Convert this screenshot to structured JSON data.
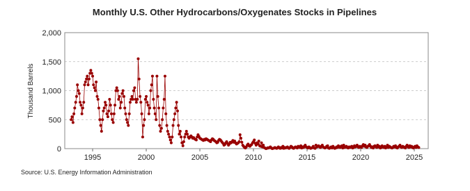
{
  "chart_data": {
    "type": "line",
    "title": "Monthly U.S. Other Hydrocarbons/Oxygenates Stocks in Pipelines",
    "y_label": "Thousand Barrels",
    "source": "Source: U.S. Energy Information Administration",
    "color": "#990000",
    "grid": true,
    "xlim": [
      1992.4,
      2026.3
    ],
    "xticks": [
      1995,
      2000,
      2005,
      2010,
      2015,
      2020,
      2025
    ],
    "ylim": [
      0,
      2000
    ],
    "yticks": [
      0,
      500,
      {
        "value": 1000,
        "label": "1,000"
      },
      {
        "value": 1500,
        "label": "1,500"
      },
      {
        "value": 2000,
        "label": "2,000"
      }
    ],
    "x": [
      1993,
      1993.08,
      1993.17,
      1993.25,
      1993.33,
      1993.42,
      1993.5,
      1993.58,
      1993.67,
      1993.75,
      1993.83,
      1993.92,
      1994,
      1994.08,
      1994.17,
      1994.25,
      1994.33,
      1994.42,
      1994.5,
      1994.58,
      1994.67,
      1994.75,
      1994.83,
      1994.92,
      1995,
      1995.08,
      1995.17,
      1995.25,
      1995.33,
      1995.42,
      1995.5,
      1995.58,
      1995.67,
      1995.75,
      1995.83,
      1995.92,
      1996,
      1996.08,
      1996.17,
      1996.25,
      1996.33,
      1996.42,
      1996.5,
      1996.58,
      1996.67,
      1996.75,
      1996.83,
      1996.92,
      1997,
      1997.08,
      1997.17,
      1997.25,
      1997.33,
      1997.42,
      1997.5,
      1997.58,
      1997.67,
      1997.75,
      1997.83,
      1997.92,
      1998,
      1998.08,
      1998.17,
      1998.25,
      1998.33,
      1998.42,
      1998.5,
      1998.58,
      1998.67,
      1998.75,
      1998.83,
      1998.92,
      1999,
      1999.08,
      1999.17,
      1999.25,
      1999.33,
      1999.42,
      1999.5,
      1999.58,
      1999.67,
      1999.75,
      1999.83,
      1999.92,
      2000,
      2000.08,
      2000.17,
      2000.25,
      2000.33,
      2000.42,
      2000.5,
      2000.58,
      2000.67,
      2000.75,
      2000.83,
      2000.92,
      2001,
      2001.08,
      2001.17,
      2001.25,
      2001.33,
      2001.42,
      2001.5,
      2001.58,
      2001.67,
      2001.75,
      2001.83,
      2001.92,
      2002,
      2002.08,
      2002.17,
      2002.25,
      2002.33,
      2002.42,
      2002.5,
      2002.58,
      2002.67,
      2002.75,
      2002.83,
      2002.92,
      2003,
      2003.08,
      2003.17,
      2003.25,
      2003.33,
      2003.42,
      2003.5,
      2003.58,
      2003.67,
      2003.75,
      2003.83,
      2003.92,
      2004,
      2004.08,
      2004.17,
      2004.25,
      2004.33,
      2004.42,
      2004.5,
      2004.58,
      2004.67,
      2004.75,
      2004.83,
      2004.92,
      2005,
      2005.08,
      2005.17,
      2005.25,
      2005.33,
      2005.42,
      2005.5,
      2005.58,
      2005.67,
      2005.75,
      2005.83,
      2005.92,
      2006,
      2006.08,
      2006.17,
      2006.25,
      2006.33,
      2006.42,
      2006.5,
      2006.58,
      2006.67,
      2006.75,
      2006.83,
      2006.92,
      2007,
      2007.08,
      2007.17,
      2007.25,
      2007.33,
      2007.42,
      2007.5,
      2007.58,
      2007.67,
      2007.75,
      2007.83,
      2007.92,
      2008,
      2008.08,
      2008.17,
      2008.25,
      2008.33,
      2008.42,
      2008.5,
      2008.58,
      2008.67,
      2008.75,
      2008.83,
      2008.92,
      2009,
      2009.08,
      2009.17,
      2009.25,
      2009.33,
      2009.42,
      2009.5,
      2009.58,
      2009.67,
      2009.75,
      2009.83,
      2009.92,
      2010,
      2010.08,
      2010.17,
      2010.25,
      2010.33,
      2010.42,
      2010.5,
      2010.58,
      2010.67,
      2010.75,
      2010.83,
      2010.92,
      2011,
      2011.08,
      2011.17,
      2011.25,
      2011.33,
      2011.42,
      2011.5,
      2011.58,
      2011.67,
      2011.75,
      2011.83,
      2011.92,
      2012,
      2012.08,
      2012.17,
      2012.25,
      2012.33,
      2012.42,
      2012.5,
      2012.58,
      2012.67,
      2012.75,
      2012.83,
      2012.92,
      2013,
      2013.08,
      2013.17,
      2013.25,
      2013.33,
      2013.42,
      2013.5,
      2013.58,
      2013.67,
      2013.75,
      2013.83,
      2013.92,
      2014,
      2014.08,
      2014.17,
      2014.25,
      2014.33,
      2014.42,
      2014.5,
      2014.58,
      2014.67,
      2014.75,
      2014.83,
      2014.92,
      2015,
      2015.08,
      2015.17,
      2015.25,
      2015.33,
      2015.42,
      2015.5,
      2015.58,
      2015.67,
      2015.75,
      2015.83,
      2015.92,
      2016,
      2016.08,
      2016.17,
      2016.25,
      2016.33,
      2016.42,
      2016.5,
      2016.58,
      2016.67,
      2016.75,
      2016.83,
      2016.92,
      2017,
      2017.08,
      2017.17,
      2017.25,
      2017.33,
      2017.42,
      2017.5,
      2017.58,
      2017.67,
      2017.75,
      2017.83,
      2017.92,
      2018,
      2018.08,
      2018.17,
      2018.25,
      2018.33,
      2018.42,
      2018.5,
      2018.58,
      2018.67,
      2018.75,
      2018.83,
      2018.92,
      2019,
      2019.08,
      2019.17,
      2019.25,
      2019.33,
      2019.42,
      2019.5,
      2019.58,
      2019.67,
      2019.75,
      2019.83,
      2019.92,
      2020,
      2020.08,
      2020.17,
      2020.25,
      2020.33,
      2020.42,
      2020.5,
      2020.58,
      2020.67,
      2020.75,
      2020.83,
      2020.92,
      2021,
      2021.08,
      2021.17,
      2021.25,
      2021.33,
      2021.42,
      2021.5,
      2021.58,
      2021.67,
      2021.75,
      2021.83,
      2021.92,
      2022,
      2022.08,
      2022.17,
      2022.25,
      2022.33,
      2022.42,
      2022.5,
      2022.58,
      2022.67,
      2022.75,
      2022.83,
      2022.92,
      2023,
      2023.08,
      2023.17,
      2023.25,
      2023.33,
      2023.42,
      2023.5,
      2023.58,
      2023.67,
      2023.75,
      2023.83,
      2023.92,
      2024,
      2024.08,
      2024.17,
      2024.25,
      2024.33,
      2024.42,
      2024.5,
      2024.58,
      2024.67,
      2024.75,
      2024.83,
      2024.92,
      2025,
      2025.08,
      2025.17,
      2025.25,
      2025.33,
      2025.42
    ],
    "values": [
      500,
      550,
      450,
      600,
      700,
      800,
      900,
      1100,
      1000,
      950,
      800,
      750,
      600,
      700,
      800,
      1100,
      1150,
      1200,
      1250,
      1100,
      1200,
      1300,
      1350,
      1300,
      1250,
      1100,
      1050,
      1000,
      1150,
      900,
      850,
      700,
      500,
      400,
      300,
      500,
      650,
      700,
      800,
      750,
      600,
      550,
      650,
      850,
      750,
      600,
      500,
      450,
      600,
      750,
      1000,
      1050,
      1000,
      850,
      900,
      700,
      800,
      950,
      1000,
      900,
      700,
      600,
      500,
      450,
      400,
      600,
      800,
      850,
      900,
      850,
      1000,
      1050,
      850,
      800,
      850,
      1550,
      1200,
      900,
      800,
      600,
      200,
      400,
      500,
      850,
      900,
      800,
      750,
      600,
      700,
      1000,
      1100,
      1250,
      850,
      700,
      600,
      500,
      1250,
      900,
      700,
      400,
      300,
      350,
      500,
      700,
      850,
      1250,
      600,
      400,
      300,
      250,
      200,
      150,
      100,
      200,
      400,
      500,
      600,
      700,
      800,
      650,
      400,
      250,
      300,
      200,
      100,
      50,
      120,
      200,
      250,
      300,
      250,
      200,
      180,
      200,
      220,
      200,
      180,
      190,
      170,
      160,
      150,
      200,
      240,
      210,
      180,
      170,
      160,
      150,
      140,
      160,
      150,
      170,
      160,
      150,
      140,
      130,
      120,
      150,
      170,
      160,
      140,
      130,
      120,
      100,
      110,
      140,
      160,
      150,
      130,
      110,
      90,
      60,
      70,
      100,
      120,
      90,
      60,
      80,
      110,
      100,
      120,
      140,
      110,
      130,
      100,
      80,
      90,
      100,
      120,
      240,
      180,
      110,
      60,
      40,
      20,
      10,
      30,
      60,
      80,
      50,
      40,
      60,
      70,
      100,
      120,
      150,
      90,
      60,
      100,
      80,
      130,
      50,
      40,
      100,
      30,
      60,
      20,
      10,
      0,
      5,
      15,
      10,
      20,
      30,
      10,
      0,
      5,
      10,
      20,
      10,
      5,
      15,
      30,
      10,
      5,
      20,
      10,
      40,
      5,
      20,
      10,
      20,
      30,
      10,
      5,
      20,
      40,
      30,
      10,
      5,
      20,
      30,
      20,
      10,
      40,
      30,
      20,
      50,
      10,
      30,
      20,
      40,
      60,
      30,
      20,
      10,
      30,
      20,
      5,
      10,
      20,
      40,
      10,
      5,
      60,
      30,
      40,
      50,
      30,
      20,
      40,
      60,
      30,
      20,
      10,
      20,
      40,
      50,
      10,
      5,
      20,
      30,
      10,
      40,
      20,
      5,
      10,
      30,
      20,
      50,
      30,
      20,
      40,
      50,
      10,
      60,
      20,
      30,
      40,
      20,
      10,
      30,
      20,
      30,
      40,
      10,
      20,
      50,
      30,
      40,
      60,
      30,
      20,
      40,
      30,
      20,
      50,
      70,
      40,
      60,
      30,
      20,
      40,
      50,
      70,
      40,
      20,
      30,
      10,
      40,
      50,
      30,
      20,
      60,
      30,
      40,
      10,
      20,
      50,
      30,
      20,
      40,
      10,
      30,
      60,
      20,
      40,
      30,
      20,
      10,
      20,
      40,
      30,
      50,
      20,
      10,
      30,
      40,
      60,
      30,
      20,
      40,
      30,
      20,
      10,
      40,
      60,
      30,
      20,
      50,
      30,
      40,
      20,
      10,
      30,
      40,
      20,
      50,
      30,
      20
    ]
  }
}
